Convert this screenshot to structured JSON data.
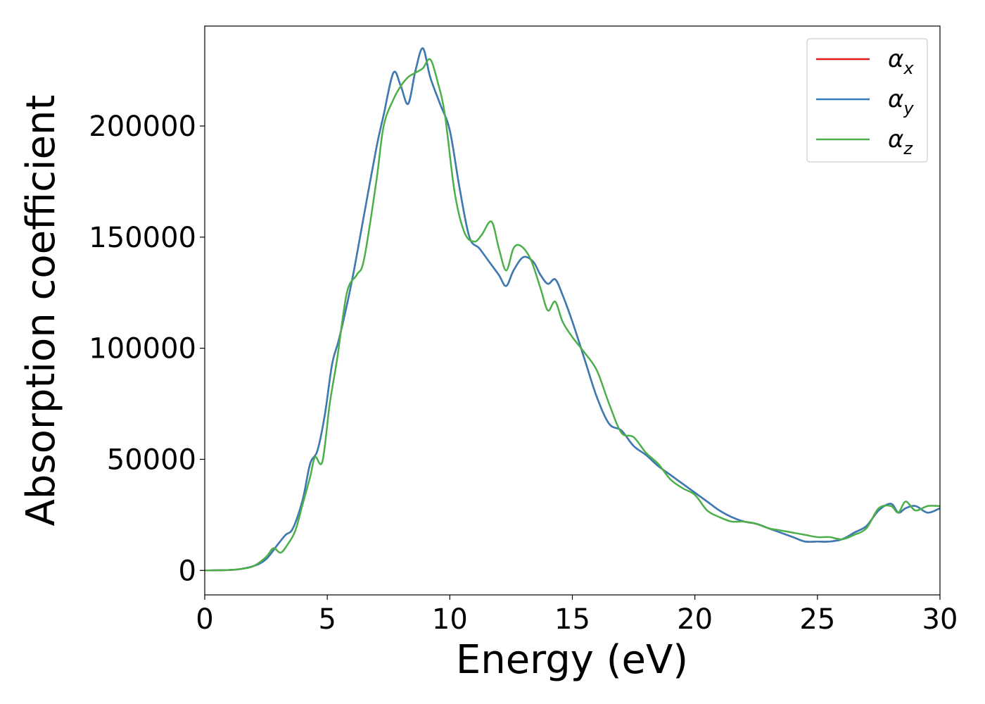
{
  "chart_data": {
    "type": "line",
    "title": "",
    "xlabel": "Energy (eV)",
    "ylabel": "Absorption coefficient",
    "xlim": [
      0,
      30
    ],
    "ylim": [
      -11000,
      245000
    ],
    "xticks": [
      0,
      5,
      10,
      15,
      20,
      25,
      30
    ],
    "yticks": [
      0,
      50000,
      100000,
      150000,
      200000
    ],
    "grid": false,
    "legend_position": "top-right",
    "series": [
      {
        "name": "α_x",
        "legend_symbol": "α",
        "legend_subscript": "x",
        "color": "#e41a1c",
        "x": [
          0,
          1,
          1.5,
          2,
          2.5,
          3,
          3.3,
          3.6,
          4,
          4.3,
          4.6,
          4.9,
          5.2,
          5.5,
          6,
          6.5,
          7,
          7.3,
          7.7,
          8,
          8.3,
          8.6,
          8.9,
          9.2,
          9.6,
          10,
          10.4,
          10.8,
          11.2,
          11.6,
          12,
          12.3,
          12.6,
          13,
          13.4,
          13.7,
          14,
          14.3,
          14.6,
          15,
          15.5,
          16,
          16.5,
          17,
          17.5,
          18,
          18.5,
          19,
          19.5,
          20,
          20.5,
          21,
          21.5,
          22,
          22.5,
          23,
          23.5,
          24,
          24.5,
          25,
          25.5,
          26,
          26.5,
          27,
          27.5,
          28,
          28.3,
          28.6,
          29,
          29.5,
          30
        ],
        "values": [
          0,
          200,
          700,
          2000,
          5000,
          12000,
          16000,
          19000,
          32000,
          48000,
          54000,
          70000,
          93000,
          105000,
          130000,
          160000,
          190000,
          205000,
          224000,
          218000,
          210000,
          225000,
          235000,
          222000,
          210000,
          198000,
          172000,
          150000,
          145000,
          139000,
          133000,
          128000,
          135000,
          141000,
          139000,
          133000,
          129000,
          131000,
          124000,
          112000,
          95000,
          78000,
          66000,
          63000,
          56000,
          52000,
          47000,
          43000,
          39000,
          35000,
          31000,
          27000,
          24000,
          22000,
          21000,
          19000,
          17000,
          15000,
          13000,
          13000,
          13000,
          14000,
          17000,
          20000,
          27000,
          30000,
          26000,
          28000,
          29000,
          26000,
          28000
        ]
      },
      {
        "name": "α_y",
        "legend_symbol": "α",
        "legend_subscript": "y",
        "color": "#377eb8",
        "x": [
          0,
          1,
          1.5,
          2,
          2.5,
          3,
          3.3,
          3.6,
          4,
          4.3,
          4.6,
          4.9,
          5.2,
          5.5,
          6,
          6.5,
          7,
          7.3,
          7.7,
          8,
          8.3,
          8.6,
          8.9,
          9.2,
          9.6,
          10,
          10.4,
          10.8,
          11.2,
          11.6,
          12,
          12.3,
          12.6,
          13,
          13.4,
          13.7,
          14,
          14.3,
          14.6,
          15,
          15.5,
          16,
          16.5,
          17,
          17.5,
          18,
          18.5,
          19,
          19.5,
          20,
          20.5,
          21,
          21.5,
          22,
          22.5,
          23,
          23.5,
          24,
          24.5,
          25,
          25.5,
          26,
          26.5,
          27,
          27.5,
          28,
          28.3,
          28.6,
          29,
          29.5,
          30
        ],
        "values": [
          0,
          200,
          700,
          2000,
          5000,
          12000,
          16000,
          19000,
          32000,
          48000,
          54000,
          70000,
          93000,
          105000,
          130000,
          160000,
          190000,
          205000,
          224000,
          218000,
          210000,
          225000,
          235000,
          222000,
          210000,
          198000,
          172000,
          150000,
          145000,
          139000,
          133000,
          128000,
          135000,
          141000,
          139000,
          133000,
          129000,
          131000,
          124000,
          112000,
          95000,
          78000,
          66000,
          63000,
          56000,
          52000,
          47000,
          43000,
          39000,
          35000,
          31000,
          27000,
          24000,
          22000,
          21000,
          19000,
          17000,
          15000,
          13000,
          13000,
          13000,
          14000,
          17000,
          20000,
          27000,
          30000,
          26000,
          28000,
          29000,
          26000,
          28000
        ]
      },
      {
        "name": "α_z",
        "legend_symbol": "α",
        "legend_subscript": "z",
        "color": "#4daf4a",
        "x": [
          0,
          1,
          1.5,
          2,
          2.5,
          2.8,
          3.1,
          3.4,
          3.7,
          4,
          4.3,
          4.5,
          4.8,
          5.1,
          5.4,
          5.8,
          6.2,
          6.5,
          7,
          7.3,
          7.7,
          8,
          8.3,
          8.6,
          8.9,
          9.2,
          9.5,
          9.8,
          10.2,
          10.6,
          11,
          11.3,
          11.7,
          12,
          12.3,
          12.6,
          12.9,
          13.3,
          13.7,
          14,
          14.3,
          14.6,
          15,
          15.5,
          16,
          16.5,
          17,
          17.5,
          18,
          18.5,
          19,
          19.5,
          20,
          20.5,
          21,
          21.5,
          22,
          22.5,
          23,
          23.5,
          24,
          24.5,
          25,
          25.5,
          26,
          26.5,
          27,
          27.5,
          28,
          28.3,
          28.6,
          29,
          29.5,
          30
        ],
        "values": [
          0,
          200,
          700,
          2000,
          6000,
          10000,
          8000,
          12000,
          18000,
          30000,
          42000,
          51000,
          49000,
          75000,
          95000,
          125000,
          133000,
          140000,
          175000,
          200000,
          212000,
          218000,
          222000,
          224000,
          226000,
          230000,
          220000,
          205000,
          170000,
          152000,
          148000,
          151000,
          157000,
          145000,
          135000,
          145000,
          146000,
          140000,
          127000,
          117000,
          121000,
          112000,
          105000,
          98000,
          90000,
          75000,
          62000,
          60000,
          53000,
          48000,
          41000,
          37000,
          34000,
          27000,
          24000,
          22000,
          22000,
          21000,
          19000,
          18000,
          17000,
          16000,
          15000,
          15000,
          14000,
          16000,
          19000,
          28000,
          29000,
          26000,
          31000,
          27000,
          29000,
          29000
        ]
      }
    ]
  }
}
